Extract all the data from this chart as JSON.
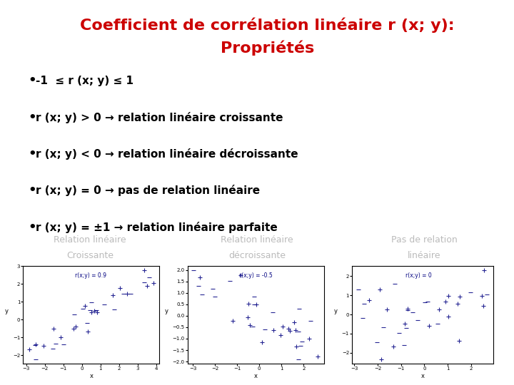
{
  "title_line1": "Coefficient de corrélation linéaire r (x; y):",
  "title_line2": "Propriétés",
  "title_color": "#cc0000",
  "title_fontsize": 16,
  "title_fontweight": "bold",
  "bg_color": "#ffffff",
  "bullets": [
    "-1  ≤ r (x; y) ≤ 1",
    "r (x; y) > 0 → relation linéaire croissante",
    "r (x; y) < 0 → relation linéaire décroissante",
    "r (x; y) = 0 → pas de relation linéaire",
    "r (x; y) = ±1 → relation linéaire parfaite"
  ],
  "bullet_fontsize": 11,
  "bullet_color": "#000000",
  "plot_labels": [
    [
      "Relation linéaire",
      "Croissante"
    ],
    [
      "Relation linéaire",
      "décroissante"
    ],
    [
      "Pas de relation",
      "linéaire"
    ]
  ],
  "plot_annotations": [
    "r(x;y) = 0.9",
    "r(x;y) = -0.5",
    "r(x;y) = 0"
  ],
  "plot_label_color": "#bbbbbb",
  "plot_label_fontsize": 9,
  "scatter_color": "#000080",
  "annot_fontsize": 5.5,
  "axis_fontsize": 6,
  "tick_fontsize": 5
}
